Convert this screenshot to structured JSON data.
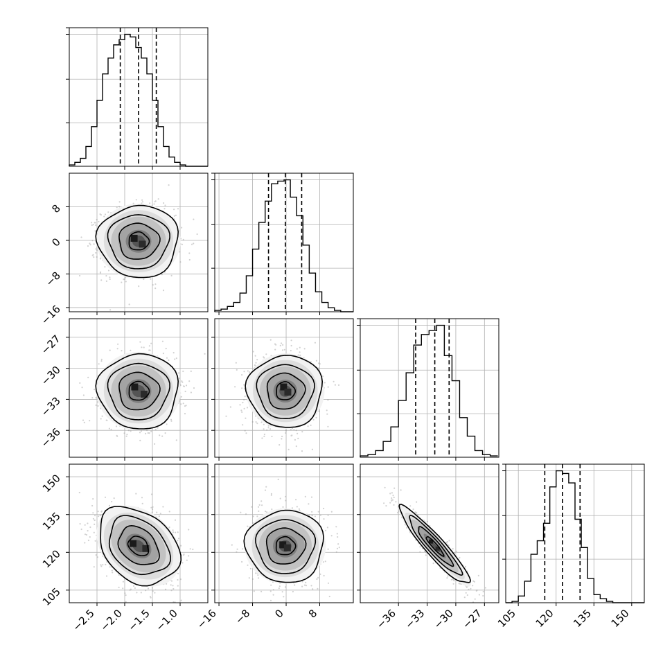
{
  "chart_data": {
    "type": "corner",
    "grid": true,
    "parameters": [
      {
        "id": "p0",
        "xlim": [
          -3.0,
          -0.5
        ],
        "ticks": [
          -2.5,
          -2.0,
          -1.5,
          -1.0
        ],
        "tick_labels": [
          "−2.5",
          "−2.0",
          "−1.5",
          "−1.0"
        ],
        "quantiles": [
          -2.08,
          -1.75,
          -1.43
        ],
        "histogram": {
          "bin_edges": [
            -3.0,
            -2.9,
            -2.8,
            -2.7,
            -2.6,
            -2.5,
            -2.4,
            -2.3,
            -2.2,
            -2.1,
            -2.0,
            -1.9,
            -1.8,
            -1.7,
            -1.6,
            -1.5,
            -1.4,
            -1.3,
            -1.2,
            -1.1,
            -1.0,
            -0.9,
            -0.8,
            -0.7,
            -0.6,
            -0.5
          ],
          "counts": [
            1,
            3,
            6,
            15,
            30,
            50,
            70,
            82,
            92,
            96,
            100,
            98,
            90,
            82,
            70,
            50,
            30,
            15,
            7,
            3,
            1,
            0,
            0,
            0,
            0
          ]
        }
      },
      {
        "id": "p1",
        "xlim": [
          -17,
          16
        ],
        "ticks": [
          -16,
          -8,
          0,
          8
        ],
        "tick_labels": [
          "−16",
          "−8",
          "0",
          "8"
        ],
        "quantiles": [
          -4.2,
          -0.2,
          3.7
        ],
        "histogram": {
          "bin_edges": [
            -17,
            -15.5,
            -14,
            -12.5,
            -11,
            -9.5,
            -8,
            -6.5,
            -5,
            -3.5,
            -2,
            -0.5,
            1,
            2.5,
            4,
            5.5,
            7,
            8.5,
            10,
            11.5,
            13,
            14.5,
            16
          ],
          "counts": [
            1,
            2,
            4,
            7,
            14,
            27,
            47,
            67,
            83,
            96,
            98,
            99,
            86,
            72,
            50,
            29,
            15,
            7,
            3,
            1,
            0,
            0
          ]
        }
      },
      {
        "id": "p2",
        "xlim": [
          -40,
          -25.5
        ],
        "ticks": [
          -36,
          -33,
          -30,
          -27
        ],
        "tick_labels": [
          "−36",
          "−33",
          "−30",
          "−27"
        ],
        "quantiles": [
          -34.2,
          -32.2,
          -30.7
        ],
        "histogram": {
          "bin_edges": [
            -40,
            -39.2,
            -38.4,
            -37.6,
            -36.8,
            -36,
            -35.2,
            -34.4,
            -33.6,
            -32.8,
            -32,
            -31.2,
            -30.4,
            -29.6,
            -28.8,
            -28,
            -27.2,
            -26.4,
            -25.6
          ],
          "counts": [
            1,
            2,
            5,
            12,
            23,
            43,
            64,
            85,
            93,
            96,
            100,
            77,
            58,
            30,
            16,
            5,
            2,
            1
          ]
        }
      },
      {
        "id": "p3",
        "xlim": [
          100,
          155
        ],
        "ticks": [
          105,
          120,
          135,
          150
        ],
        "tick_labels": [
          "105",
          "120",
          "135",
          "150"
        ],
        "quantiles": [
          115.5,
          122.5,
          129.5
        ],
        "histogram": {
          "bin_edges": [
            100,
            102.5,
            105,
            107.5,
            110,
            112.5,
            115,
            117.5,
            120,
            122.5,
            125,
            127.5,
            130,
            132.5,
            135,
            137.5,
            140,
            142.5,
            145,
            147.5,
            150,
            152.5,
            155
          ],
          "counts": [
            0,
            1,
            5,
            16,
            36,
            46,
            59,
            86,
            98,
            96,
            89,
            62,
            41,
            18,
            6,
            3,
            1,
            0,
            0,
            0,
            0,
            0
          ]
        }
      }
    ],
    "pairs": [
      {
        "x": "p0",
        "y": "p1",
        "ylim": [
          -17,
          16
        ],
        "mean": [
          -1.75,
          -0.2
        ],
        "sigma": [
          0.33,
          3.9
        ],
        "corr": 0.0,
        "peak_cells": [
          [
            -1.83,
            0.5
          ],
          [
            -1.68,
            -0.9
          ]
        ]
      },
      {
        "x": "p0",
        "y": "p2",
        "ylim": [
          -38.6,
          -25.2
        ],
        "mean": [
          -1.75,
          -32.2
        ],
        "sigma": [
          0.33,
          1.65
        ],
        "corr": 0.0,
        "peak_cells": [
          [
            -1.82,
            -31.8
          ],
          [
            -1.65,
            -32.5
          ]
        ]
      },
      {
        "x": "p1",
        "y": "p2",
        "ylim": [
          -38.6,
          -25.2
        ],
        "mean": [
          -0.2,
          -32.2
        ],
        "sigma": [
          3.9,
          1.65
        ],
        "corr": 0.0,
        "peak_cells": [
          [
            -0.6,
            -31.8
          ],
          [
            0.4,
            -32.3
          ]
        ]
      },
      {
        "x": "p0",
        "y": "p3",
        "ylim": [
          100,
          155
        ],
        "mean": [
          -1.75,
          122.5
        ],
        "sigma": [
          0.33,
          7.0
        ],
        "corr": -0.3,
        "peak_cells": [
          [
            -1.85,
            123.5
          ],
          [
            -1.62,
            121.5
          ]
        ]
      },
      {
        "x": "p1",
        "y": "p3",
        "ylim": [
          100,
          155
        ],
        "mean": [
          -0.2,
          122.5
        ],
        "sigma": [
          3.9,
          7.0
        ],
        "corr": 0.0,
        "peak_cells": [
          [
            -0.8,
            123
          ],
          [
            0.3,
            121.8
          ]
        ]
      },
      {
        "x": "p2",
        "y": "p3",
        "ylim": [
          100,
          155
        ],
        "mean": [
          -32.2,
          122.5
        ],
        "sigma": [
          1.65,
          7.0
        ],
        "corr": -0.93,
        "peak_cells": [
          [
            -32.6,
            124.3
          ],
          [
            -31.9,
            121.5
          ]
        ]
      }
    ],
    "y_axes": [
      {
        "row": 1,
        "ticks": [
          8,
          0,
          -8,
          -16
        ],
        "tick_labels": [
          "8",
          "0",
          "−8",
          "−16"
        ]
      },
      {
        "row": 2,
        "ticks": [
          -27,
          -30,
          -33,
          -36
        ],
        "tick_labels": [
          "−27",
          "−30",
          "−33",
          "−36"
        ]
      },
      {
        "row": 3,
        "ticks": [
          150,
          135,
          120,
          105
        ],
        "tick_labels": [
          "150",
          "135",
          "120",
          "105"
        ]
      }
    ],
    "contour_levels_sigma": [
      0.5,
      1.0,
      1.5,
      2.0
    ]
  }
}
